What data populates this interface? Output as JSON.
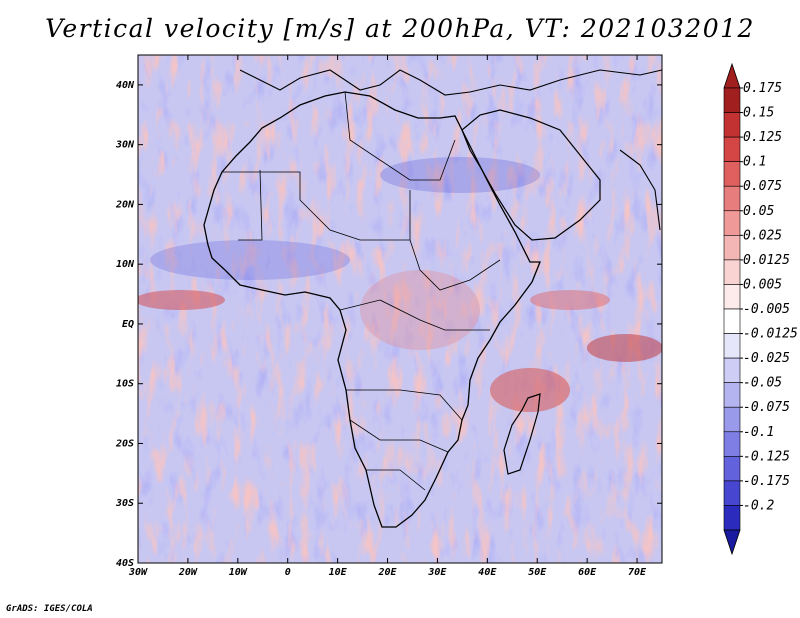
{
  "title": "Vertical velocity [m/s] at 200hPa, VT: 2021032012",
  "credit": "GrADS: IGES/COLA",
  "map": {
    "lat_labels": [
      "40N",
      "30N",
      "20N",
      "10N",
      "EQ",
      "10S",
      "20S",
      "30S",
      "40S"
    ],
    "lat_values": [
      40,
      30,
      20,
      10,
      0,
      -10,
      -20,
      -30,
      -40
    ],
    "lon_labels": [
      "30W",
      "20W",
      "10W",
      "0",
      "10E",
      "20E",
      "30E",
      "40E",
      "50E",
      "60E",
      "70E"
    ],
    "lon_values": [
      -30,
      -20,
      -10,
      0,
      10,
      20,
      30,
      40,
      50,
      60,
      70
    ],
    "lat_range": [
      -40,
      45
    ],
    "lon_range": [
      -30,
      75
    ]
  },
  "colorbar": {
    "labels": [
      "0.175",
      "0.15",
      "0.125",
      "0.1",
      "0.075",
      "0.05",
      "0.025",
      "0.0125",
      "0.005",
      "-0.005",
      "-0.0125",
      "-0.025",
      "-0.05",
      "-0.075",
      "-0.1",
      "-0.125",
      "-0.175",
      "-0.2"
    ],
    "colors": [
      "#a11f1f",
      "#c23232",
      "#d44545",
      "#e06060",
      "#e87d7d",
      "#ef9999",
      "#f4b5b5",
      "#f9d2d2",
      "#fdeaea",
      "#ffffff",
      "#e6e6fb",
      "#cdcdf6",
      "#b4b4f1",
      "#9a9aeb",
      "#7e7ee4",
      "#6262dc",
      "#4646d0",
      "#2b2bbd",
      "#1a1aa0"
    ],
    "top_color": "#a11f1f",
    "bottom_color": "#1a1aa0"
  }
}
